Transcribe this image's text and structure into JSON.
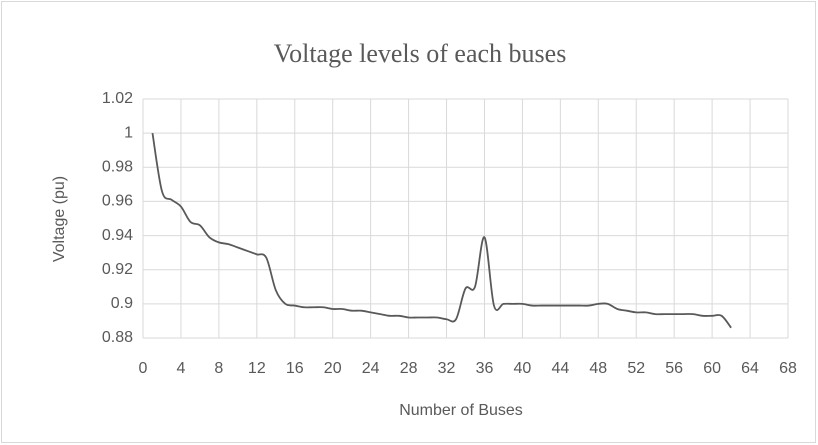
{
  "chart_data": {
    "type": "line",
    "title": "Voltage levels of each buses",
    "x_label": "Number of Buses",
    "y_label": "Voltage (pu)",
    "series": [
      {
        "name": "Voltage",
        "color": "#595959",
        "x": [
          1,
          2,
          3,
          4,
          5,
          6,
          7,
          8,
          9,
          10,
          11,
          12,
          13,
          14,
          15,
          16,
          17,
          18,
          19,
          20,
          21,
          22,
          23,
          24,
          25,
          26,
          27,
          28,
          29,
          30,
          31,
          32,
          33,
          34,
          35,
          36,
          37,
          38,
          39,
          40,
          41,
          42,
          43,
          44,
          45,
          46,
          47,
          48,
          49,
          50,
          51,
          52,
          53,
          54,
          55,
          56,
          57,
          58,
          59,
          60,
          61,
          62
        ],
        "values": [
          1.0,
          0.966,
          0.961,
          0.957,
          0.948,
          0.946,
          0.939,
          0.936,
          0.935,
          0.933,
          0.931,
          0.929,
          0.927,
          0.908,
          0.9,
          0.899,
          0.898,
          0.898,
          0.898,
          0.897,
          0.897,
          0.896,
          0.896,
          0.895,
          0.894,
          0.893,
          0.893,
          0.892,
          0.892,
          0.892,
          0.892,
          0.891,
          0.891,
          0.909,
          0.91,
          0.939,
          0.899,
          0.9,
          0.9,
          0.9,
          0.899,
          0.899,
          0.899,
          0.899,
          0.899,
          0.899,
          0.899,
          0.9,
          0.9,
          0.897,
          0.896,
          0.895,
          0.895,
          0.894,
          0.894,
          0.894,
          0.894,
          0.894,
          0.893,
          0.893,
          0.893,
          0.886
        ]
      }
    ],
    "xlim": [
      0,
      68
    ],
    "xticks": [
      0,
      4,
      8,
      12,
      16,
      20,
      24,
      28,
      32,
      36,
      40,
      44,
      48,
      52,
      56,
      60,
      64,
      68
    ],
    "ylim": [
      0.88,
      1.02
    ],
    "yticks": [
      0.88,
      0.9,
      0.92,
      0.94,
      0.96,
      0.98,
      1,
      1.02
    ],
    "grid": true
  }
}
